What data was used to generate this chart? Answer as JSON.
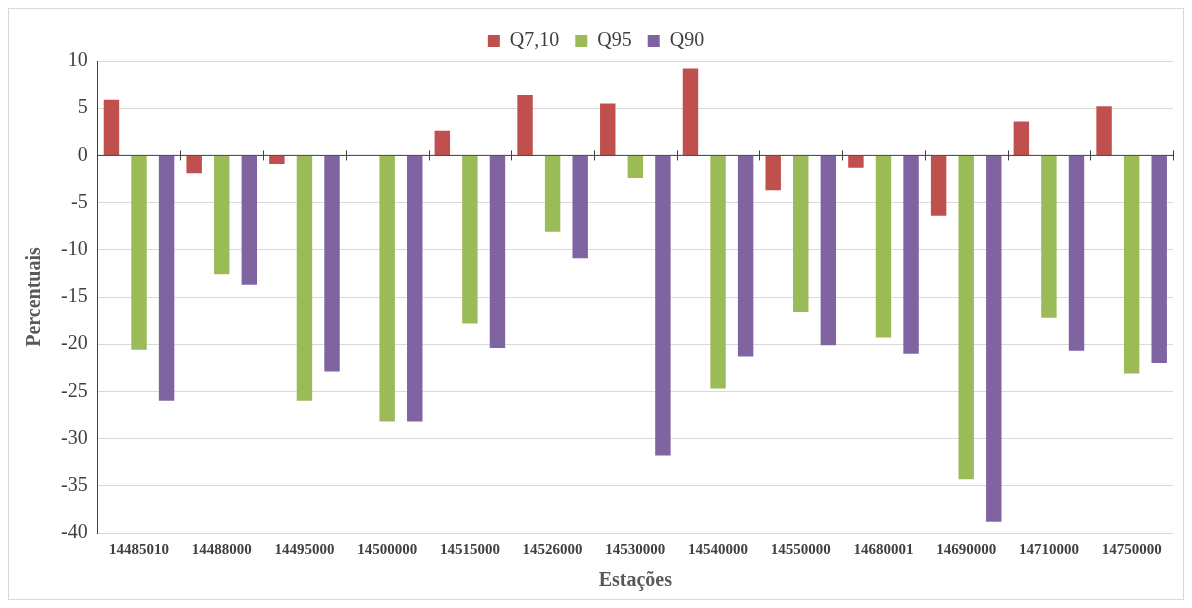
{
  "chart_data": {
    "type": "bar",
    "xlabel": "Estações",
    "ylabel": "Percentuais",
    "categories": [
      "14485010",
      "14488000",
      "14495000",
      "14500000",
      "14515000",
      "14526000",
      "14530000",
      "14540000",
      "14550000",
      "14680001",
      "14690000",
      "14710000",
      "14750000"
    ],
    "series": [
      {
        "name": "Q7,10",
        "color": "#c0504d",
        "values": [
          5.9,
          -1.9,
          -0.9,
          0,
          2.6,
          6.4,
          5.5,
          9.2,
          -3.7,
          -1.3,
          -6.4,
          3.6,
          5.2
        ]
      },
      {
        "name": "Q95",
        "color": "#9bbb59",
        "values": [
          -20.6,
          -12.6,
          -26.0,
          -28.2,
          -17.8,
          -8.1,
          -2.4,
          -24.7,
          -16.6,
          -19.3,
          -34.3,
          -17.2,
          -23.1
        ]
      },
      {
        "name": "Q90",
        "color": "#8064a2",
        "values": [
          -26.0,
          -13.7,
          -22.9,
          -28.2,
          -20.4,
          -10.9,
          -31.8,
          -21.3,
          -20.1,
          -21.0,
          -38.8,
          -20.7,
          -22.0
        ]
      }
    ],
    "ylim": [
      -40,
      10
    ],
    "yticks": [
      -40,
      -35,
      -30,
      -25,
      -20,
      -15,
      -10,
      -5,
      0,
      5,
      10
    ],
    "grid": "y",
    "legend": "top"
  }
}
